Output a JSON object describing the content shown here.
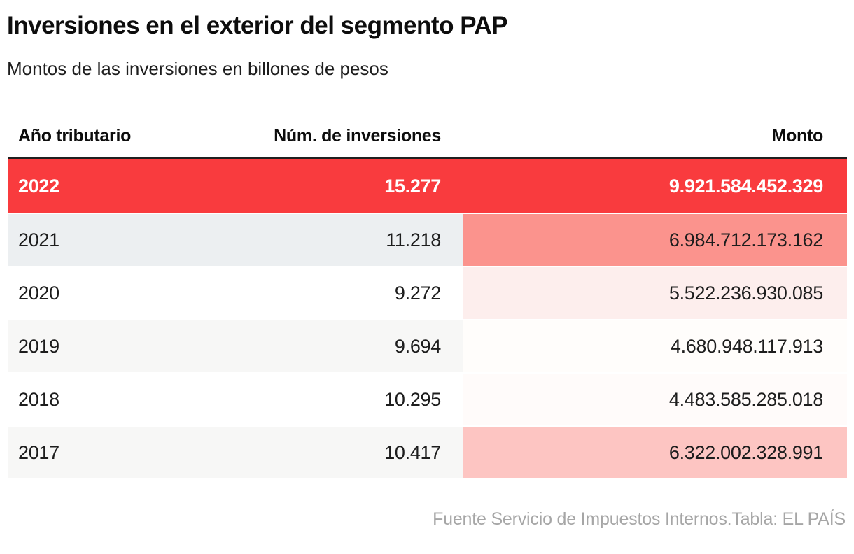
{
  "title": "Inversiones en el exterior del segmento PAP",
  "subtitle": "Montos de las inversiones en billones de pesos",
  "source_note": "Fuente Servicio de Impuestos Internos.Tabla: EL PAÍS",
  "colors": {
    "accent_red": "#f93b3e",
    "header_rule": "#1f1f1f",
    "row_stripe_blue_gray": "#eceff1",
    "row_stripe_gray": "#f7f7f6",
    "monto_heat_strong": "#fb938d",
    "monto_heat_medium": "#fdc5c2",
    "monto_heat_light": "#fdeeed",
    "monto_heat_none": "#fffdfb",
    "footer_text": "#a6a6a6"
  },
  "table": {
    "columns": {
      "year": "Año tributario",
      "num": "Núm. de inversiones",
      "monto": "Monto"
    },
    "rows": [
      {
        "year": "2022",
        "num": "15.277",
        "monto": "9.921.584.452.329",
        "row_bg": "#f93b3e",
        "monto_bg": "#f93b3e",
        "text_color": "#ffffff",
        "featured": true
      },
      {
        "year": "2021",
        "num": "11.218",
        "monto": "6.984.712.173.162",
        "row_bg": "#eceff1",
        "monto_bg": "#fb938d",
        "text_color": "#1d1d1d",
        "featured": false
      },
      {
        "year": "2020",
        "num": "9.272",
        "monto": "5.522.236.930.085",
        "row_bg": "#ffffff",
        "monto_bg": "#fdeeed",
        "text_color": "#1d1d1d",
        "featured": false
      },
      {
        "year": "2019",
        "num": "9.694",
        "monto": "4.680.948.117.913",
        "row_bg": "#f7f7f6",
        "monto_bg": "#fffdfb",
        "text_color": "#1d1d1d",
        "featured": false
      },
      {
        "year": "2018",
        "num": "10.295",
        "monto": "4.483.585.285.018",
        "row_bg": "#ffffff",
        "monto_bg": "#fffbfa",
        "text_color": "#1d1d1d",
        "featured": false
      },
      {
        "year": "2017",
        "num": "10.417",
        "monto": "6.322.002.328.991",
        "row_bg": "#f7f7f6",
        "monto_bg": "#fdc5c2",
        "text_color": "#1d1d1d",
        "featured": false
      }
    ]
  },
  "chart_data": {
    "type": "table",
    "title": "Inversiones en el exterior del segmento PAP",
    "subtitle": "Montos de las inversiones en billones de pesos",
    "columns": [
      "Año tributario",
      "Núm. de inversiones",
      "Monto"
    ],
    "rows": [
      [
        "2022",
        "15.277",
        "9.921.584.452.329"
      ],
      [
        "2021",
        "11.218",
        "6.984.712.173.162"
      ],
      [
        "2020",
        "9.272",
        "5.522.236.930.085"
      ],
      [
        "2019",
        "9.694",
        "4.680.948.117.913"
      ],
      [
        "2018",
        "10.295",
        "4.483.585.285.018"
      ],
      [
        "2017",
        "10.417",
        "6.322.002.328.991"
      ]
    ],
    "highlighted_row": "2022",
    "monto_heatmap": true,
    "source": "Fuente Servicio de Impuestos Internos.Tabla: EL PAÍS"
  }
}
